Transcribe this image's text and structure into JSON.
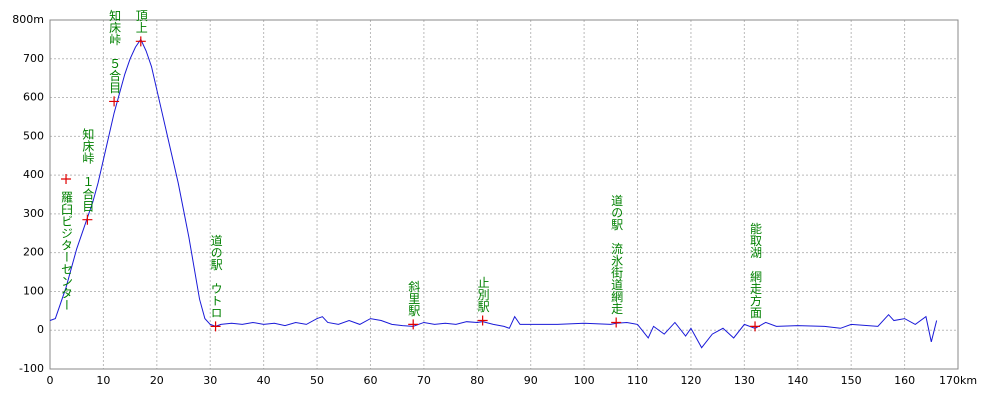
{
  "chart_data": {
    "type": "line",
    "x": [
      0,
      1,
      2,
      3,
      4,
      5,
      6,
      7,
      8,
      9,
      10,
      11,
      12,
      13,
      14,
      15,
      16,
      17,
      18,
      19,
      20,
      21,
      22,
      23,
      24,
      25,
      26,
      27,
      28,
      29,
      30,
      31,
      32,
      34,
      36,
      38,
      40,
      42,
      44,
      46,
      48,
      50,
      51,
      52,
      54,
      56,
      58,
      60,
      62,
      64,
      66,
      68,
      70,
      72,
      74,
      76,
      78,
      80,
      81,
      83,
      85,
      86,
      87,
      88,
      90,
      95,
      100,
      105,
      106,
      108,
      110,
      112,
      113,
      115,
      117,
      119,
      120,
      122,
      124,
      126,
      128,
      130,
      132,
      134,
      136,
      140,
      145,
      148,
      150,
      155,
      157,
      158,
      160,
      162,
      164,
      165,
      166
    ],
    "values": [
      25,
      30,
      70,
      110,
      160,
      210,
      250,
      290,
      330,
      380,
      440,
      500,
      560,
      610,
      660,
      700,
      730,
      750,
      720,
      680,
      620,
      560,
      500,
      440,
      380,
      310,
      240,
      160,
      80,
      30,
      15,
      10,
      15,
      18,
      15,
      20,
      15,
      18,
      12,
      20,
      15,
      30,
      35,
      20,
      15,
      25,
      15,
      30,
      25,
      15,
      12,
      10,
      20,
      15,
      18,
      15,
      22,
      20,
      22,
      15,
      10,
      5,
      35,
      15,
      15,
      15,
      18,
      15,
      18,
      20,
      15,
      -20,
      10,
      -10,
      20,
      -15,
      5,
      -45,
      -10,
      5,
      -20,
      15,
      5,
      20,
      10,
      12,
      10,
      5,
      15,
      10,
      40,
      25,
      30,
      15,
      35,
      -30,
      25
    ],
    "color": "#1a1ad8",
    "xlim": [
      0,
      170
    ],
    "ylim": [
      -100,
      800
    ],
    "xticks": [
      0,
      10,
      20,
      30,
      40,
      50,
      60,
      70,
      80,
      90,
      100,
      110,
      120,
      130,
      140,
      150,
      160,
      {
        "value": 170,
        "label": "170km"
      }
    ],
    "yticks": [
      -100,
      0,
      100,
      200,
      300,
      400,
      500,
      600,
      700,
      {
        "value": 800,
        "label": "800m"
      }
    ],
    "grid": true,
    "annotations": [
      {
        "x": 3,
        "y": 390,
        "label": "羅臼ビジターセンター"
      },
      {
        "x": 7,
        "y": 285,
        "label": "知床峠　１合目"
      },
      {
        "x": 12,
        "y": 590,
        "label": "知床峠　５合目"
      },
      {
        "x": 17,
        "y": 745,
        "label": "知床峠　頂上"
      },
      {
        "x": 31,
        "y": 10,
        "label": "道の駅　ウトロ"
      },
      {
        "x": 68,
        "y": 15,
        "label": "斜里駅"
      },
      {
        "x": 81,
        "y": 25,
        "label": "止別駅"
      },
      {
        "x": 106,
        "y": 20,
        "label": "道の駅　流氷街道網走"
      },
      {
        "x": 132,
        "y": 10,
        "label": "能取湖　網走方面"
      }
    ]
  }
}
